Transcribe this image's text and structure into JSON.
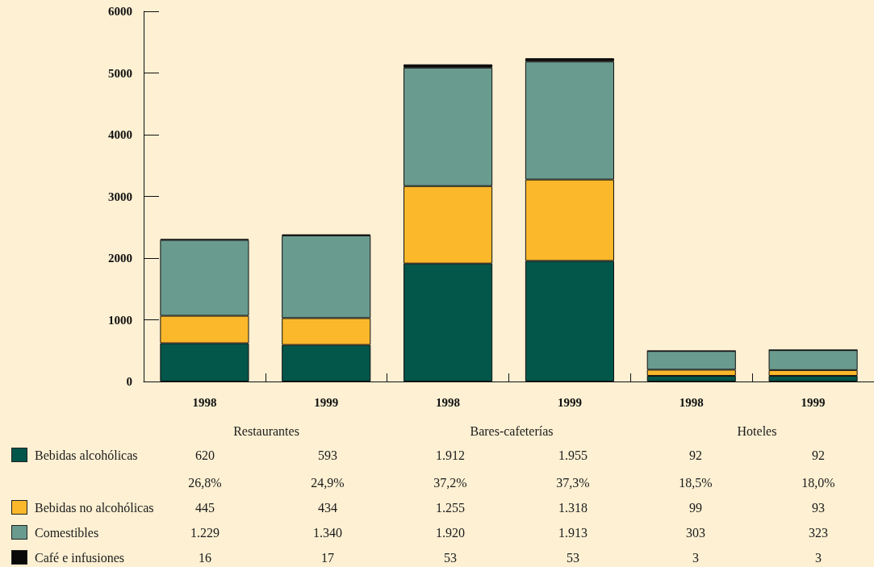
{
  "chart_data": {
    "type": "bar",
    "stacked": true,
    "categories": [
      "1998",
      "1999",
      "1998",
      "1999",
      "1998",
      "1999"
    ],
    "series": [
      {
        "name": "Bebidas alcohólicas",
        "color": "#02564a",
        "values": [
          620,
          593,
          1912,
          1955,
          92,
          92
        ],
        "value_labels": [
          "620",
          "593",
          "1.912",
          "1.955",
          "92",
          "92"
        ]
      },
      {
        "name": "Bebidas no alcohólicas",
        "color": "#fbb82b",
        "values": [
          445,
          434,
          1255,
          1318,
          99,
          93
        ],
        "value_labels": [
          "445",
          "434",
          "1.255",
          "1.318",
          "99",
          "93"
        ]
      },
      {
        "name": "Comestibles",
        "color": "#699b8e",
        "values": [
          1229,
          1340,
          1920,
          1913,
          303,
          323
        ],
        "value_labels": [
          "1.229",
          "1.340",
          "1.920",
          "1.913",
          "303",
          "323"
        ]
      },
      {
        "name": "Café e infusiones",
        "color": "#0a0a0a",
        "values": [
          16,
          17,
          53,
          53,
          3,
          3
        ],
        "value_labels": [
          "16",
          "17",
          "53",
          "53",
          "3",
          "3"
        ]
      }
    ],
    "annotations": [
      "Restaurantes",
      "Bares-cafeterías",
      "Hoteles",
      "26,8%",
      "24,9%",
      "37,2%",
      "37,3%",
      "18,5%",
      "18,0%"
    ],
    "ylim": [
      0,
      6000
    ],
    "yticks": [
      0,
      1000,
      2000,
      3000,
      4000,
      5000,
      6000
    ],
    "grid": false,
    "legend": "bottom left"
  }
}
